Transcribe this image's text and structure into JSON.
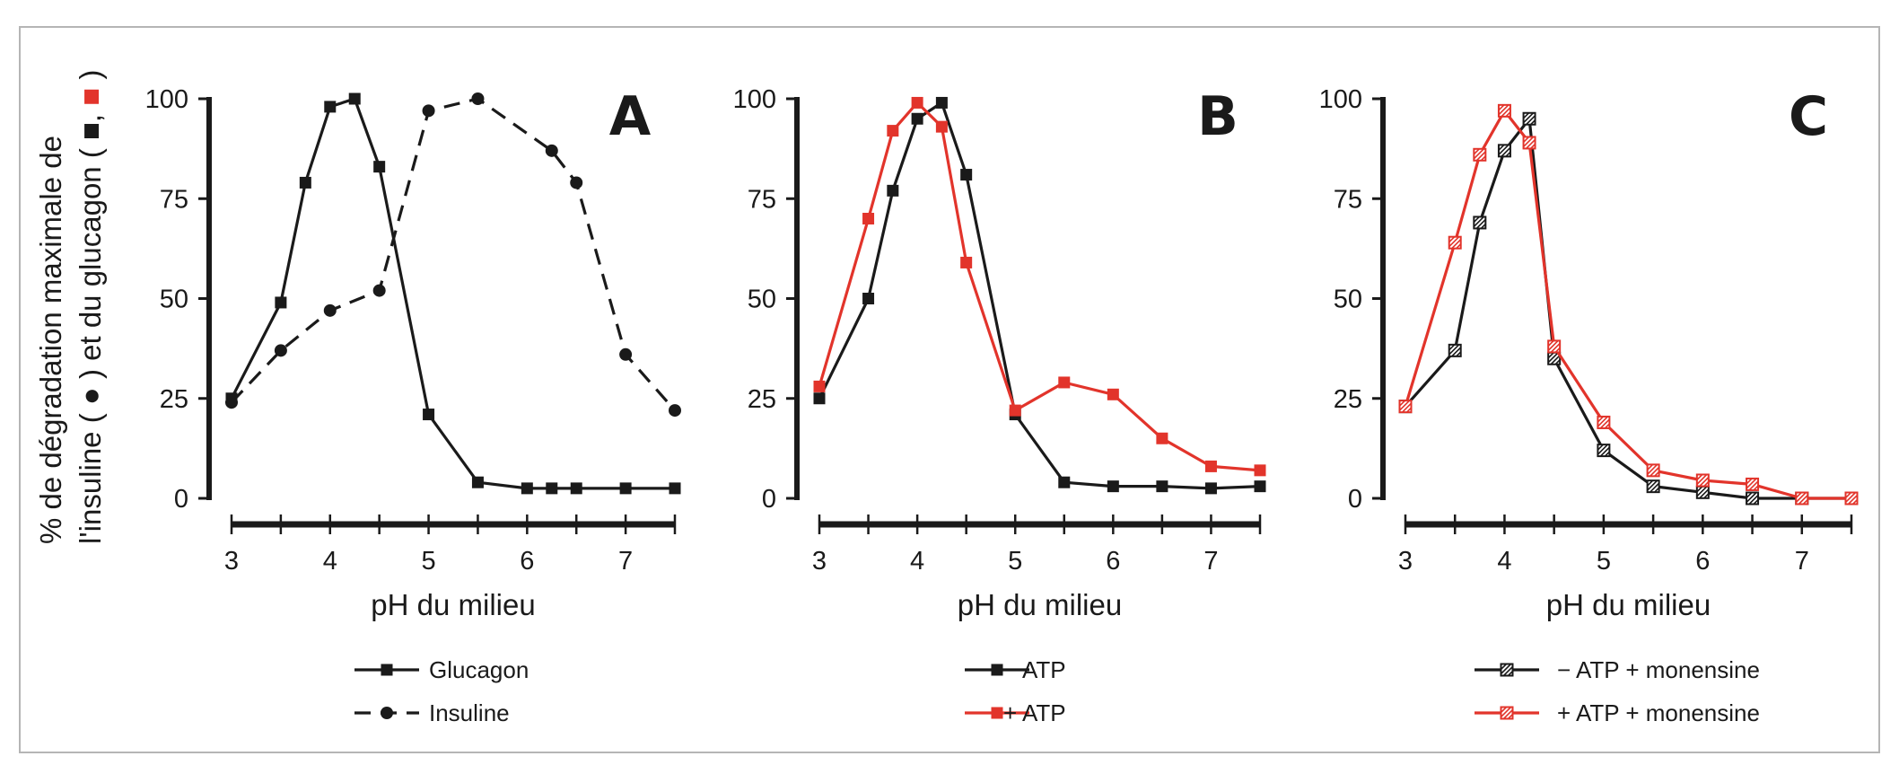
{
  "figure": {
    "ylabel_line1": "% de dégradation maximale de",
    "ylabel_line2_prefix": "l'insuline (",
    "ylabel_line2_mid": ") et du glucagon (",
    "ylabel_line2_sep": ",",
    "ylabel_line2_suffix": ")",
    "colors": {
      "black": "#1a1a1a",
      "red": "#e2342b",
      "frame": "#b5b5b5"
    }
  },
  "chart_data": [
    {
      "type": "line",
      "panel": "A",
      "title": "",
      "xlabel": "pH du milieu",
      "ylabel": "% de dégradation maximale de l'insuline et du glucagon",
      "xlim": [
        3,
        7.5
      ],
      "ylim": [
        0,
        100
      ],
      "xticks": [
        "3",
        "4",
        "5",
        "6",
        "7"
      ],
      "yticks": [
        "0",
        "25",
        "50",
        "75",
        "100"
      ],
      "series": [
        {
          "name": "Glucagon",
          "color": "#1a1a1a",
          "marker": "square",
          "dash": false,
          "x": [
            3,
            3.5,
            3.75,
            4,
            4.25,
            4.5,
            5,
            5.5,
            6,
            6.25,
            6.5,
            7,
            7.5
          ],
          "y": [
            25,
            49,
            79,
            98,
            100,
            83,
            21,
            4,
            2.5,
            2.5,
            2.5,
            2.5,
            2.5
          ]
        },
        {
          "name": "Insuline",
          "color": "#1a1a1a",
          "marker": "circle",
          "dash": true,
          "x": [
            3,
            3.5,
            4,
            4.5,
            5,
            5.5,
            6.25,
            6.5,
            7,
            7.5
          ],
          "y": [
            24,
            37,
            47,
            52,
            97,
            100,
            87,
            79,
            36,
            22
          ]
        }
      ]
    },
    {
      "type": "line",
      "panel": "B",
      "title": "",
      "xlabel": "pH du milieu",
      "xlim": [
        3,
        7.5
      ],
      "ylim": [
        0,
        100
      ],
      "xticks": [
        "3",
        "4",
        "5",
        "6",
        "7"
      ],
      "yticks": [
        "0",
        "25",
        "50",
        "75",
        "100"
      ],
      "series": [
        {
          "name": "− ATP",
          "color": "#1a1a1a",
          "marker": "square",
          "dash": false,
          "x": [
            3,
            3.5,
            3.75,
            4,
            4.25,
            4.5,
            5,
            5.5,
            6,
            6.5,
            7,
            7.5
          ],
          "y": [
            25,
            50,
            77,
            95,
            99,
            81,
            21,
            4,
            3,
            3,
            2.5,
            3
          ]
        },
        {
          "name": "+ ATP",
          "color": "#e2342b",
          "marker": "square",
          "dash": false,
          "x": [
            3,
            3.5,
            3.75,
            4,
            4.25,
            4.5,
            5,
            5.5,
            6,
            6.5,
            7,
            7.5
          ],
          "y": [
            28,
            70,
            92,
            99,
            93,
            59,
            22,
            29,
            26,
            15,
            8,
            7
          ]
        }
      ]
    },
    {
      "type": "line",
      "panel": "C",
      "title": "",
      "xlabel": "pH du milieu",
      "xlim": [
        3,
        7.5
      ],
      "ylim": [
        0,
        100
      ],
      "xticks": [
        "3",
        "4",
        "5",
        "6",
        "7"
      ],
      "yticks": [
        "0",
        "25",
        "50",
        "75",
        "100"
      ],
      "series": [
        {
          "name": "− ATP + monensine",
          "color": "#1a1a1a",
          "marker": "hatched-square",
          "dash": false,
          "x": [
            3,
            3.5,
            3.75,
            4,
            4.25,
            4.5,
            5,
            5.5,
            6,
            6.5,
            7,
            7.5
          ],
          "y": [
            23,
            37,
            69,
            87,
            95,
            35,
            12,
            3,
            1.5,
            0,
            0,
            0
          ]
        },
        {
          "name": "+ ATP + monensine",
          "color": "#e2342b",
          "marker": "hatched-square",
          "dash": false,
          "x": [
            3,
            3.5,
            3.75,
            4,
            4.25,
            4.5,
            5,
            5.5,
            6,
            6.5,
            7,
            7.5
          ],
          "y": [
            23,
            64,
            86,
            97,
            89,
            38,
            19,
            7,
            4.5,
            3.5,
            0,
            0
          ]
        }
      ]
    }
  ]
}
